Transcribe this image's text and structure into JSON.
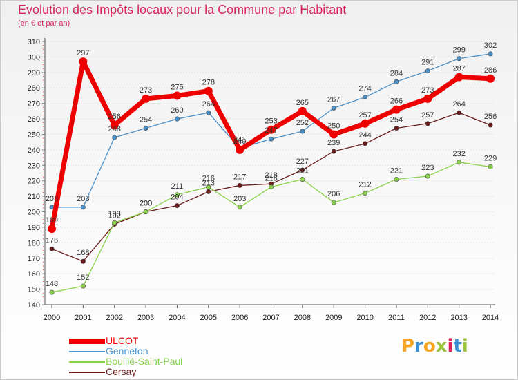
{
  "header": {
    "title": "Evolution des Impôts locaux pour la Commune par Habitant",
    "subtitle": "(en € et par an)"
  },
  "brand": {
    "letters": [
      "P",
      "r",
      "o",
      "x",
      "i",
      "t",
      "i"
    ],
    "colors": [
      "#f5a623",
      "#3a8fd6",
      "#f5a623",
      "#9bc53d",
      "#d9245b",
      "#3a8fd6",
      "#9bc53d"
    ]
  },
  "chart_data": {
    "type": "line",
    "title": "Evolution des Impôts locaux pour la Commune par Habitant",
    "subtitle": "(en € et par an)",
    "xlabel": "",
    "ylabel": "",
    "x": [
      "2000",
      "2001",
      "2002",
      "2003",
      "2004",
      "2005",
      "2006",
      "2007",
      "2008",
      "2009",
      "2010",
      "2011",
      "2012",
      "2013",
      "2014"
    ],
    "ylim": [
      140,
      310
    ],
    "yticks": [
      140,
      150,
      160,
      170,
      180,
      190,
      200,
      210,
      220,
      230,
      240,
      250,
      260,
      270,
      280,
      290,
      300,
      310
    ],
    "grid": "horizontal-dotted",
    "legend": "bottom-left",
    "series": [
      {
        "name": "ULCOT",
        "color": "#ee0000",
        "values": [
          189,
          297,
          256,
          273,
          275,
          278,
          240,
          253,
          265,
          250,
          257,
          266,
          273,
          287,
          286
        ]
      },
      {
        "name": "Genneton",
        "color": "#4a90c8",
        "values": [
          203,
          203,
          248,
          254,
          260,
          264,
          241,
          247,
          252,
          267,
          274,
          284,
          291,
          299,
          302
        ]
      },
      {
        "name": "Bouillé-Saint-Paul",
        "color": "#8ad24b",
        "values": [
          148,
          152,
          193,
          200,
          211,
          216,
          203,
          216,
          221,
          206,
          212,
          221,
          223,
          232,
          229
        ]
      },
      {
        "name": "Cersay",
        "color": "#6b1b1b",
        "values": [
          176,
          168,
          192,
          200,
          204,
          213,
          217,
          218,
          227,
          239,
          244,
          254,
          257,
          264,
          256
        ]
      }
    ]
  }
}
